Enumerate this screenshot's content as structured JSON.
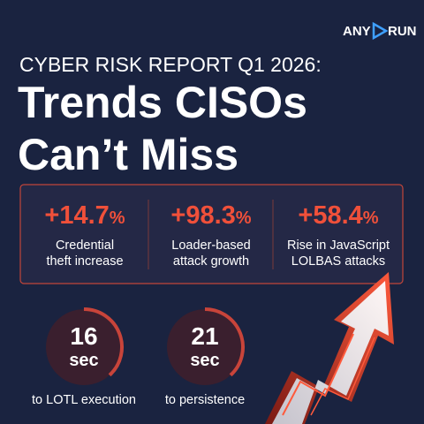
{
  "brand": {
    "left": "ANY",
    "right": "RUN"
  },
  "header": {
    "kicker": "CYBER RISK REPORT Q1 2026:",
    "title_lines": [
      "Trends CISOs",
      "Can’t Miss"
    ]
  },
  "stats": [
    {
      "value": "+14.7",
      "unit": "%",
      "label_lines": [
        "Credential",
        "theft increase"
      ]
    },
    {
      "value": "+98.3",
      "unit": "%",
      "label_lines": [
        "Loader-based",
        "attack growth"
      ]
    },
    {
      "value": "+58.4",
      "unit": "%",
      "label_lines": [
        "Rise in JavaScript",
        "LOLBAS attacks"
      ]
    }
  ],
  "timers": [
    {
      "value": "16",
      "unit": "sec",
      "label": "to LOTL execution"
    },
    {
      "value": "21",
      "unit": "sec",
      "label": "to persistence"
    }
  ]
}
